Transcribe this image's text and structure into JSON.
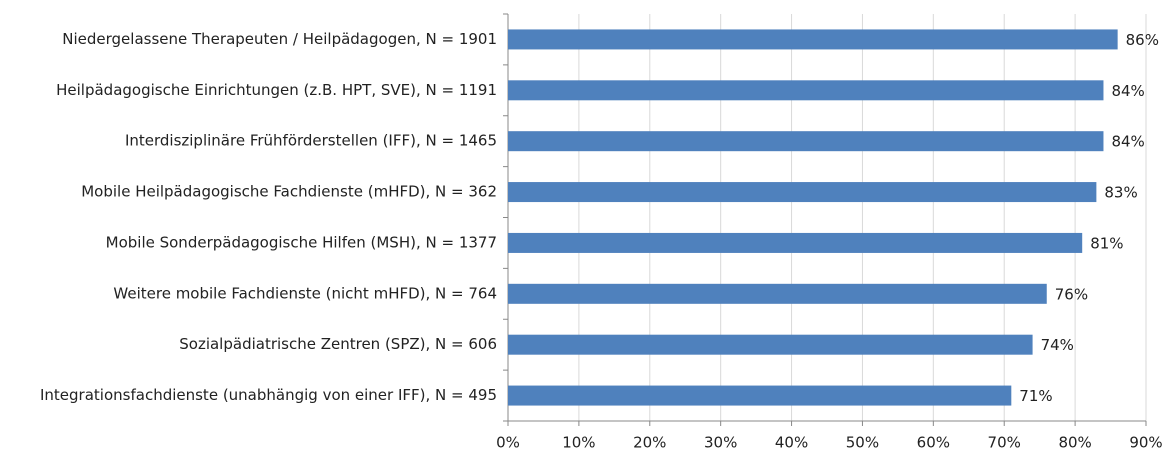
{
  "chart_data": {
    "type": "hbar",
    "categories": [
      "Niedergelassene Therapeuten / Heilpädagogen, N = 1901",
      "Heilpädagogische Einrichtungen (z.B. HPT, SVE), N = 1191",
      "Interdisziplinäre Frühförderstellen (IFF), N = 1465",
      "Mobile Heilpädagogische Fachdienste (mHFD), N = 362",
      "Mobile Sonderpädagogische Hilfen (MSH), N = 1377",
      "Weitere mobile Fachdienste (nicht mHFD), N = 764",
      "Sozialpädiatrische Zentren (SPZ), N = 606",
      "Integrationsfachdienste (unabhängig von einer IFF), N = 495"
    ],
    "values": [
      86,
      84,
      84,
      83,
      81,
      76,
      74,
      71
    ],
    "value_labels": [
      "86%",
      "84%",
      "84%",
      "83%",
      "81%",
      "76%",
      "74%",
      "71%"
    ],
    "color": "#4f81bd",
    "xlim": [
      0,
      90
    ],
    "xticks": [
      {
        "value": 0,
        "label": "0%"
      },
      {
        "value": 10,
        "label": "10%"
      },
      {
        "value": 20,
        "label": "20%"
      },
      {
        "value": 30,
        "label": "30%"
      },
      {
        "value": 40,
        "label": "40%"
      },
      {
        "value": 50,
        "label": "50%"
      },
      {
        "value": 60,
        "label": "60%"
      },
      {
        "value": 70,
        "label": "70%"
      },
      {
        "value": 80,
        "label": "80%"
      },
      {
        "value": 90,
        "label": "90%"
      }
    ],
    "grid": true
  }
}
